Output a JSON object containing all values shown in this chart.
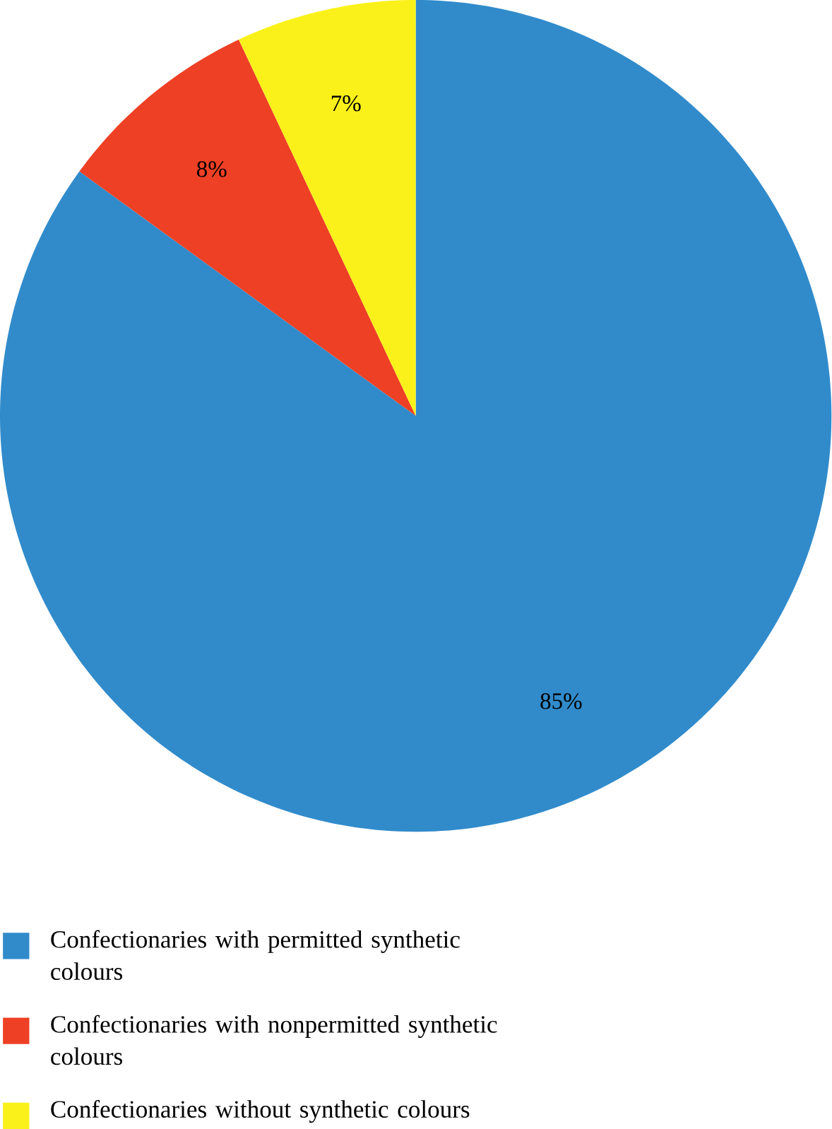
{
  "chart_data": {
    "type": "pie",
    "categories": [
      "Confectionaries with permitted synthetic colours",
      "Confectionaries with nonpermitted synthetic colours",
      "Confectionaries without synthetic colours"
    ],
    "values": [
      85,
      8,
      7
    ],
    "colors": [
      "#318bcb",
      "#ee4024",
      "#fbf11a"
    ],
    "value_labels": [
      "85%",
      "8%",
      "7%"
    ],
    "legend": "bottom"
  }
}
